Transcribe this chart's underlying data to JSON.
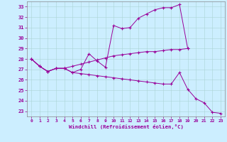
{
  "bg_color": "#cceeff",
  "line_color": "#990099",
  "xlabel": "Windchill (Refroidissement éolien,°C)",
  "ylim": [
    22.5,
    33.5
  ],
  "xlim": [
    -0.5,
    23.5
  ],
  "yticks": [
    23,
    24,
    25,
    26,
    27,
    28,
    29,
    30,
    31,
    32,
    33
  ],
  "xticks": [
    0,
    1,
    2,
    3,
    4,
    5,
    6,
    7,
    8,
    9,
    10,
    11,
    12,
    13,
    14,
    15,
    16,
    17,
    18,
    19,
    20,
    21,
    22,
    23
  ],
  "curve1_x": [
    0,
    1,
    2,
    3,
    4,
    5,
    6,
    7,
    8,
    9,
    10,
    11,
    12,
    13,
    14,
    15,
    16,
    17,
    18,
    19
  ],
  "curve1_y": [
    28.0,
    27.3,
    26.8,
    27.1,
    27.1,
    26.7,
    27.0,
    28.5,
    27.8,
    27.2,
    31.2,
    30.9,
    31.0,
    31.9,
    32.3,
    32.7,
    32.9,
    32.9,
    33.2,
    29.0
  ],
  "curve2_x": [
    0,
    1,
    2,
    3,
    4,
    5,
    6,
    7,
    8,
    9,
    10,
    11,
    12,
    13,
    14,
    15,
    16,
    17,
    18,
    19
  ],
  "curve2_y": [
    28.0,
    27.3,
    26.8,
    27.1,
    27.1,
    27.3,
    27.5,
    27.7,
    27.9,
    28.1,
    28.3,
    28.4,
    28.5,
    28.6,
    28.7,
    28.7,
    28.8,
    28.9,
    28.9,
    29.0
  ],
  "curve3_x": [
    0,
    1,
    2,
    3,
    4,
    5,
    6,
    7,
    8,
    9,
    10,
    11,
    12,
    13,
    14,
    15,
    16,
    17,
    18,
    19,
    20,
    21,
    22,
    23
  ],
  "curve3_y": [
    28.0,
    27.3,
    26.8,
    27.1,
    27.1,
    26.7,
    26.6,
    26.5,
    26.4,
    26.3,
    26.2,
    26.1,
    26.0,
    25.9,
    25.8,
    25.7,
    25.6,
    25.6,
    26.7,
    25.1,
    24.2,
    23.8,
    22.9,
    22.8
  ]
}
